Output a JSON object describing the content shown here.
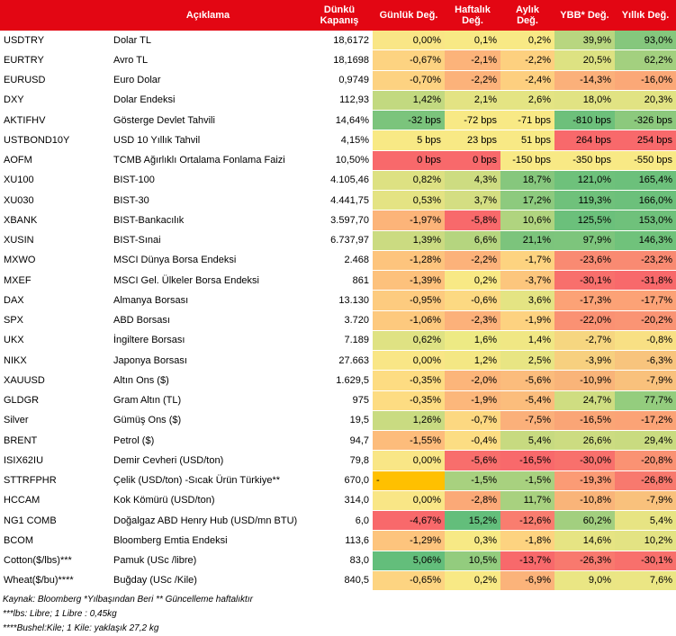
{
  "header": {
    "code": "",
    "desc": "Açıklama",
    "close": "Dünkü\nKapanış",
    "daily": "Günlük Değ.",
    "weekly": "Haftalık\nDeğ.",
    "monthly": "Aylık\nDeğ.",
    "ytd": "YBB* Değ.",
    "yearly": "Yıllık Değ."
  },
  "colors": {
    "header": "#e30613",
    "dark_green": "#63be7b",
    "light_green": "#a9d27f",
    "yellow": "#f8e985",
    "orange": "#fcb37a",
    "red": "#f8696b",
    "gold": "#ffc000"
  },
  "rows": [
    {
      "code": "USDTRY",
      "desc": "Dolar TL",
      "close": "18,6172",
      "vals": [
        "0,00%",
        "0,1%",
        "0,2%",
        "39,9%",
        "93,0%"
      ],
      "colors": [
        "#f9e686",
        "#f8e985",
        "#f8e985",
        "#b8d680",
        "#85c77d"
      ]
    },
    {
      "code": "EURTRY",
      "desc": "Avro TL",
      "close": "18,1698",
      "vals": [
        "-0,67%",
        "-2,1%",
        "-2,2%",
        "20,5%",
        "62,2%"
      ],
      "colors": [
        "#fdd381",
        "#fcb37a",
        "#fdd07f",
        "#dde282",
        "#a3d07f"
      ]
    },
    {
      "code": "EURUSD",
      "desc": "Euro Dolar",
      "close": "0,9749",
      "vals": [
        "-0,70%",
        "-2,2%",
        "-2,4%",
        "-14,3%",
        "-16,0%"
      ],
      "colors": [
        "#fdd281",
        "#fcb27a",
        "#fdcf7f",
        "#fbb07a",
        "#fba877"
      ]
    },
    {
      "code": "DXY",
      "desc": "Dolar Endeksi",
      "close": "112,93",
      "vals": [
        "1,42%",
        "2,1%",
        "2,6%",
        "18,0%",
        "20,3%"
      ],
      "colors": [
        "#c2d980",
        "#e3e383",
        "#e4e483",
        "#e1e383",
        "#e1e383"
      ]
    },
    {
      "code": "AKTIFHV",
      "desc": "Gösterge Devlet Tahvili",
      "close": "14,64%",
      "vals": [
        "-32 bps",
        "-72 bps",
        "-71 bps",
        "-810 bps",
        "-326 bps"
      ],
      "colors": [
        "#7bc47c",
        "#f8e985",
        "#f8e985",
        "#6dc07b",
        "#8cc97d"
      ]
    },
    {
      "code": "USTBOND10Y",
      "desc": "USD 10 Yıllık Tahvil",
      "close": "4,15%",
      "vals": [
        "5 bps",
        "23 bps",
        "51 bps",
        "264 bps",
        "254 bps"
      ],
      "colors": [
        "#f8e985",
        "#f8e985",
        "#f8e985",
        "#f8696b",
        "#f8696b"
      ]
    },
    {
      "code": "AOFM",
      "desc": "TCMB Ağırlıklı Ortalama Fonlama Faizi",
      "close": "10,50%",
      "vals": [
        "0 bps",
        "0 bps",
        "-150 bps",
        "-350 bps",
        "-550 bps"
      ],
      "colors": [
        "#f8696b",
        "#f8696b",
        "#f8e985",
        "#f8e985",
        "#f8e985"
      ]
    },
    {
      "code": "XU100",
      "desc": "BIST-100",
      "close": "4.105,46",
      "vals": [
        "0,82%",
        "4,3%",
        "18,7%",
        "121,0%",
        "165,4%"
      ],
      "colors": [
        "#dde182",
        "#cddc81",
        "#86c77d",
        "#6ec17b",
        "#6cc07b"
      ]
    },
    {
      "code": "XU030",
      "desc": "BIST-30",
      "close": "4.441,75",
      "vals": [
        "0,53%",
        "3,7%",
        "17,2%",
        "119,3%",
        "166,0%"
      ],
      "colors": [
        "#e4e383",
        "#d4de82",
        "#8dca7e",
        "#6fc17b",
        "#6cc07b"
      ]
    },
    {
      "code": "XBANK",
      "desc": "BIST-Bankacılık",
      "close": "3.597,70",
      "vals": [
        "-1,97%",
        "-5,8%",
        "10,6%",
        "125,5%",
        "153,0%"
      ],
      "colors": [
        "#fcb479",
        "#f8696b",
        "#b0d47f",
        "#6bc07b",
        "#6fc17b"
      ]
    },
    {
      "code": "XUSIN",
      "desc": "BIST-Sınai",
      "close": "6.737,97",
      "vals": [
        "1,39%",
        "6,6%",
        "21,1%",
        "97,9%",
        "146,3%"
      ],
      "colors": [
        "#cbdb81",
        "#b5d57f",
        "#7cc47c",
        "#7dc57c",
        "#70c27b"
      ]
    },
    {
      "code": "MXWO",
      "desc": "MSCI Dünya Borsa Endeksi",
      "close": "2.468",
      "vals": [
        "-1,28%",
        "-2,2%",
        "-1,7%",
        "-23,6%",
        "-23,2%"
      ],
      "colors": [
        "#fdc47d",
        "#fcb27a",
        "#fdd380",
        "#f98a72",
        "#f98a72"
      ]
    },
    {
      "code": "MXEF",
      "desc": "MSCI Gel. Ülkeler Borsa Endeksi",
      "close": "861",
      "vals": [
        "-1,39%",
        "0,2%",
        "-3,7%",
        "-30,1%",
        "-31,8%"
      ],
      "colors": [
        "#fdc17c",
        "#f8e985",
        "#fcc67d",
        "#f86f6c",
        "#f8696b"
      ]
    },
    {
      "code": "DAX",
      "desc": "Almanya Borsası",
      "close": "13.130",
      "vals": [
        "-0,95%",
        "-0,6%",
        "3,6%",
        "-17,3%",
        "-17,7%"
      ],
      "colors": [
        "#fdcb7f",
        "#fcd982",
        "#e4e483",
        "#fca276",
        "#fca276"
      ]
    },
    {
      "code": "SPX",
      "desc": "ABD Borsası",
      "close": "3.720",
      "vals": [
        "-1,06%",
        "-2,3%",
        "-1,9%",
        "-22,0%",
        "-20,2%"
      ],
      "colors": [
        "#fdc97e",
        "#fcb17a",
        "#fdd280",
        "#fa9173",
        "#fa9474"
      ]
    },
    {
      "code": "UKX",
      "desc": "İngiltere Borsası",
      "close": "7.189",
      "vals": [
        "0,62%",
        "1,6%",
        "1,4%",
        "-2,7%",
        "-0,8%"
      ],
      "colors": [
        "#dfe283",
        "#edea84",
        "#f0e784",
        "#f6d680",
        "#f8e084"
      ]
    },
    {
      "code": "NIKX",
      "desc": "Japonya Borsası",
      "close": "27.663",
      "vals": [
        "0,00%",
        "1,2%",
        "2,5%",
        "-3,9%",
        "-6,3%"
      ],
      "colors": [
        "#f9e686",
        "#f4e784",
        "#e8e583",
        "#f7d07f",
        "#f8c47d"
      ]
    },
    {
      "code": "XAUUSD",
      "desc": "Altın Ons ($)",
      "close": "1.629,5",
      "vals": [
        "-0,35%",
        "-2,0%",
        "-5,6%",
        "-10,9%",
        "-7,9%"
      ],
      "colors": [
        "#fddc82",
        "#fcb57a",
        "#fbbc7c",
        "#f9b479",
        "#f9c17c"
      ]
    },
    {
      "code": "GLDGR",
      "desc": "Gram Altın (TL)",
      "close": "975",
      "vals": [
        "-0,35%",
        "-1,9%",
        "-5,4%",
        "24,7%",
        "77,7%"
      ],
      "colors": [
        "#fddc82",
        "#fcb77b",
        "#fbbd7c",
        "#cfdd81",
        "#94cd7e"
      ]
    },
    {
      "code": "Silver",
      "desc": "Gümüş Ons ($)",
      "close": "19,5",
      "vals": [
        "1,26%",
        "-0,7%",
        "-7,5%",
        "-16,5%",
        "-17,2%"
      ],
      "colors": [
        "#c9db81",
        "#fcd881",
        "#fbb07a",
        "#faa576",
        "#fba376"
      ]
    },
    {
      "code": "BRENT",
      "desc": "Petrol ($)",
      "close": "94,7",
      "vals": [
        "-1,55%",
        "-0,4%",
        "5,4%",
        "26,6%",
        "29,4%"
      ],
      "colors": [
        "#fdbc7b",
        "#fcdd83",
        "#c7da80",
        "#ccdc81",
        "#c9db80"
      ]
    },
    {
      "code": "ISIX62IU",
      "desc": "Demir Cevheri (USD/ton)",
      "close": "79,8",
      "vals": [
        "0,00%",
        "-5,6%",
        "-16,5%",
        "-30,0%",
        "-20,8%"
      ],
      "colors": [
        "#f9e686",
        "#f86e6c",
        "#f8696b",
        "#f8706c",
        "#fa9273"
      ]
    },
    {
      "code": "STTRFPHR",
      "desc": "Çelik (USD/ton) -Sıcak Ürün Türkiye**",
      "close": "670,0",
      "vals": [
        "-",
        "-1,5%",
        "-1,5%",
        "-19,3%",
        "-26,8%"
      ],
      "colors": [
        "#ffc000",
        "#a8d17f",
        "#a8d17f",
        "#fb9b75",
        "#f8796e"
      ]
    },
    {
      "code": "HCCAM",
      "desc": "Kok Kömürü (USD/ton)",
      "close": "314,0",
      "vals": [
        "0,00%",
        "-2,8%",
        "11,7%",
        "-10,8%",
        "-7,9%"
      ],
      "colors": [
        "#f9e686",
        "#fba977",
        "#a8d17f",
        "#f9b479",
        "#f9c17c"
      ]
    },
    {
      "code": "NG1 COMB",
      "desc": "Doğalgaz ABD Henry Hub (USD/mn BTU)",
      "close": "6,0",
      "vals": [
        "-4,67%",
        "15,2%",
        "-12,6%",
        "60,2%",
        "5,4%"
      ],
      "colors": [
        "#f8696b",
        "#63be7b",
        "#f97d6f",
        "#a2cf7f",
        "#e7e483"
      ]
    },
    {
      "code": "BCOM",
      "desc": "Bloomberg Emtia Endeksi",
      "close": "113,6",
      "vals": [
        "-1,29%",
        "0,3%",
        "-1,8%",
        "14,6%",
        "10,2%"
      ],
      "colors": [
        "#fdc47d",
        "#f7e985",
        "#fdd380",
        "#e6e483",
        "#e3e383"
      ]
    },
    {
      "code": "Cotton($/lbs)***",
      "desc": "Pamuk (USc /libre)",
      "close": "83,0",
      "vals": [
        "5,06%",
        "10,5%",
        "-13,7%",
        "-26,3%",
        "-30,1%"
      ],
      "colors": [
        "#63be7b",
        "#93cc7e",
        "#f8696b",
        "#f8796e",
        "#f8706c"
      ]
    },
    {
      "code": "Wheat($/bu)****",
      "desc": "Buğday (USc /Kile)",
      "close": "840,5",
      "vals": [
        "-0,65%",
        "0,2%",
        "-6,9%",
        "9,0%",
        "7,6%"
      ],
      "colors": [
        "#fdd481",
        "#f8e985",
        "#fbb37a",
        "#eae684",
        "#ebe684"
      ]
    }
  ],
  "footnotes": [
    "Kaynak: Bloomberg *Yılbaşından Beri  ** Güncelleme haftalıktır",
    "***lbs: Libre; 1 Libre : 0,45kg",
    "****Bushel:Kile; 1 Kile: yaklaşık 27,2 kg"
  ]
}
